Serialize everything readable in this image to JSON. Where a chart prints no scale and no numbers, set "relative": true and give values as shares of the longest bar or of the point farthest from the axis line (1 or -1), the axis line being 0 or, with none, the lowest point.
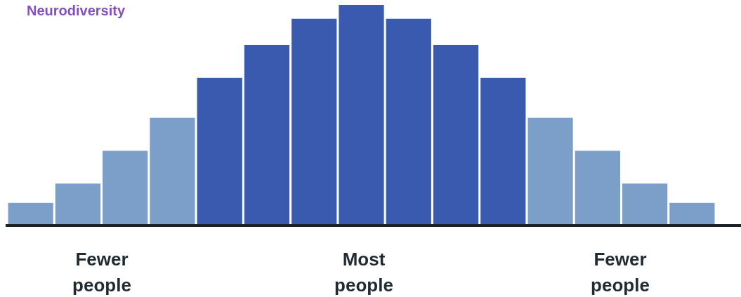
{
  "chart_data": {
    "type": "bar",
    "title": "Neurodiversity",
    "relative": true,
    "categories": [
      null,
      null,
      null,
      null,
      null,
      null,
      null,
      null,
      null,
      null,
      null,
      null,
      null,
      null,
      null
    ],
    "values": [
      0.097,
      0.185,
      0.335,
      0.486,
      0.668,
      0.818,
      0.937,
      1,
      0.937,
      0.818,
      0.668,
      0.486,
      0.335,
      0.185,
      0.097
    ],
    "colors": [
      "#7b9fc9",
      "#7b9fc9",
      "#7b9fc9",
      "#7b9fc9",
      "#3a5ab0",
      "#3a5ab0",
      "#3a5ab0",
      "#3a5ab0",
      "#3a5ab0",
      "#3a5ab0",
      "#3a5ab0",
      "#7b9fc9",
      "#7b9fc9",
      "#7b9fc9",
      "#7b9fc9"
    ],
    "annotations": [
      "Fewer people",
      "Most people",
      "Fewer people"
    ],
    "grid": false,
    "legend": false
  }
}
